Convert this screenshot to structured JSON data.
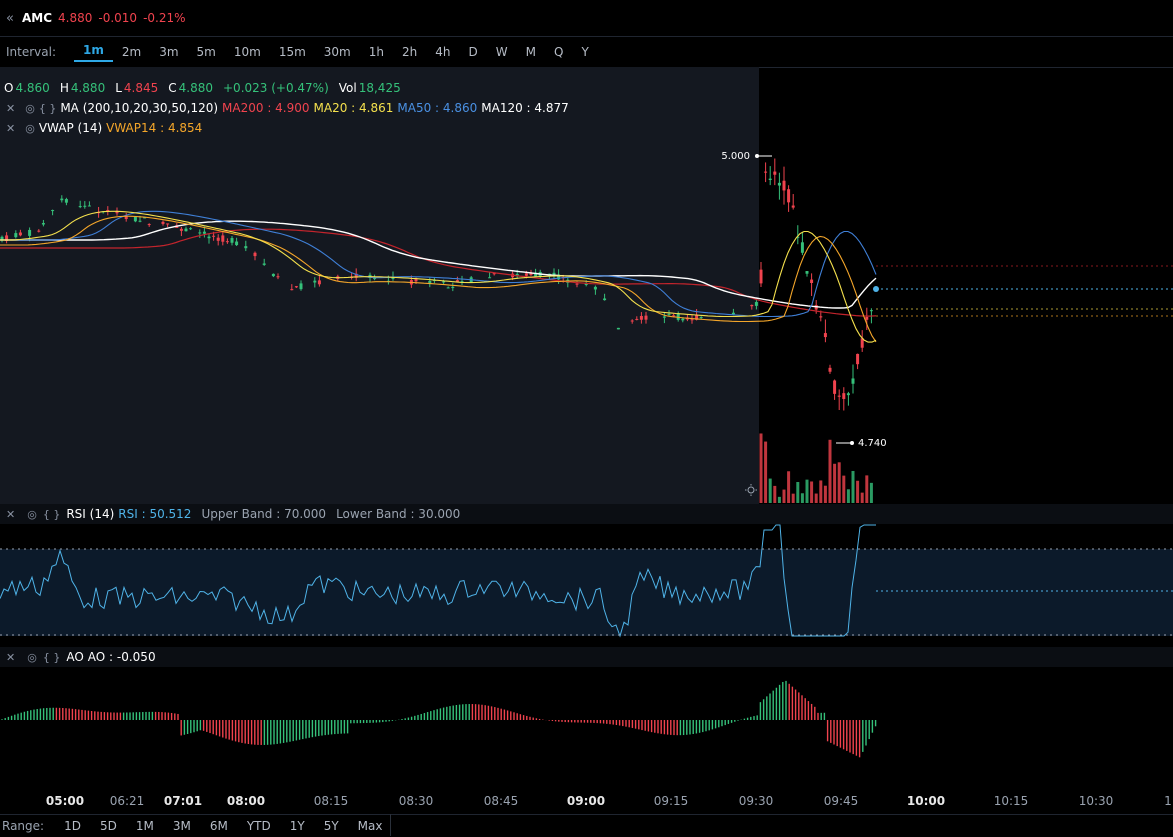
{
  "header": {
    "symbol": "AMC",
    "price": "4.880",
    "change": "-0.010",
    "change_pct": "-0.21%"
  },
  "interval_bar": {
    "label": "Interval:",
    "options": [
      "1m",
      "2m",
      "3m",
      "5m",
      "10m",
      "15m",
      "30m",
      "1h",
      "2h",
      "4h",
      "D",
      "W",
      "M",
      "Q",
      "Y"
    ],
    "active": "1m"
  },
  "ohlc": {
    "o_label": "O",
    "o": "4.860",
    "h_label": "H",
    "h": "4.880",
    "l_label": "L",
    "l": "4.845",
    "c_label": "C",
    "c": "4.880",
    "change": "+0.023 (+0.47%)",
    "vol_label": "Vol",
    "vol": "18,425"
  },
  "ma_legend": {
    "name": "MA (200,10,20,30,50,120)",
    "ma200": "MA200 : 4.900",
    "ma20": "MA20 : 4.861",
    "ma50": "MA50 : 4.860",
    "ma120": "MA120 : 4.877"
  },
  "vwap_legend": {
    "name": "VWAP (14)",
    "value": "VWAP14 : 4.854"
  },
  "rsi_legend": {
    "name": "RSI (14)",
    "value": "RSI : 50.512",
    "upper": "Upper Band : 70.000",
    "lower": "Lower Band : 30.000"
  },
  "ao_legend": {
    "name": "AO",
    "value": "AO : -0.050"
  },
  "price_markers": {
    "high": "5.000",
    "low": "4.740"
  },
  "x_axis": {
    "labels": [
      "05:00",
      "06:21",
      "07:01",
      "08:00",
      "08:15",
      "08:30",
      "08:45",
      "09:00",
      "09:15",
      "09:30",
      "09:45",
      "10:00",
      "10:15",
      "10:30",
      "1"
    ]
  },
  "range_bar": {
    "label": "Range:",
    "options": [
      "1D",
      "5D",
      "1M",
      "3M",
      "6M",
      "YTD",
      "1Y",
      "5Y",
      "Max"
    ]
  },
  "colors": {
    "up": "#35c17a",
    "down": "#f0434e",
    "ma200": "#c3242c",
    "ma20": "#f4e04d",
    "ma50": "#3f7fd6",
    "ma120": "#ffffff",
    "vwap": "#f4a62a",
    "rsi": "#4fb3e8",
    "accent": "#2ea8e6"
  },
  "chart_data": {
    "type": "line",
    "title": "",
    "x_axis_labels": [
      "05:00",
      "06:21",
      "07:01",
      "08:00",
      "08:15",
      "08:30",
      "08:45",
      "09:00",
      "09:15",
      "09:30",
      "09:45",
      "10:00",
      "10:15",
      "10:30"
    ],
    "price_series_approx": {
      "x": [
        "05:00",
        "06:21",
        "07:01",
        "08:00",
        "08:15",
        "08:30",
        "08:45",
        "09:00",
        "09:15",
        "09:30",
        "09:35",
        "09:40",
        "09:45",
        "09:48"
      ],
      "close": [
        4.88,
        4.89,
        4.87,
        4.86,
        4.85,
        4.86,
        4.87,
        4.87,
        4.84,
        4.85,
        4.95,
        4.9,
        4.78,
        4.88
      ]
    },
    "annotations": [
      {
        "label": "5.000",
        "type": "high"
      },
      {
        "label": "4.740",
        "type": "low"
      }
    ],
    "rsi_bands": [
      70,
      30
    ],
    "rsi_last": 50.512,
    "ao_last": -0.05
  }
}
